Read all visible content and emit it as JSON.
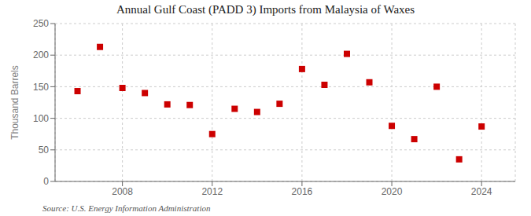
{
  "chart_data": {
    "type": "scatter",
    "title": "Annual Gulf Coast (PADD 3) Imports from Malaysia of Waxes",
    "y_label": "Thousand Barrels",
    "annotations": [
      "Source: U.S. Energy Information Administration"
    ],
    "x": [
      2006,
      2007,
      2008,
      2009,
      2010,
      2011,
      2012,
      2013,
      2014,
      2015,
      2016,
      2017,
      2018,
      2019,
      2020,
      2021,
      2022,
      2023,
      2024
    ],
    "values": [
      143,
      213,
      148,
      140,
      122,
      121,
      75,
      115,
      110,
      123,
      178,
      153,
      202,
      157,
      88,
      67,
      150,
      35,
      87
    ],
    "color": "#cc0000",
    "marker": "square",
    "xlim": [
      2005.0,
      2025.5
    ],
    "xticks": [
      2008,
      2012,
      2016,
      2020,
      2024
    ],
    "ylim": [
      0,
      250
    ],
    "yticks": [
      0,
      50,
      100,
      150,
      200,
      250
    ],
    "grid": true
  }
}
